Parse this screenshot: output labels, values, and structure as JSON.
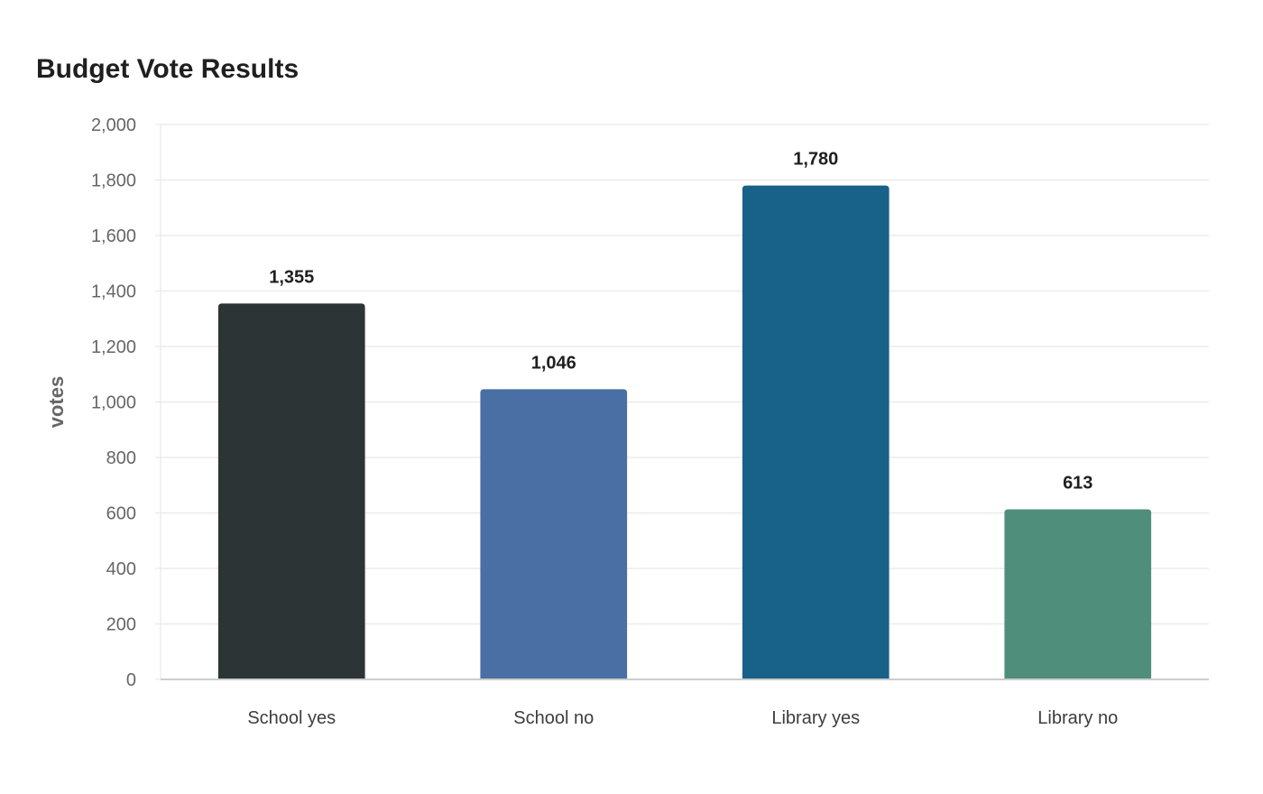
{
  "chart_data": {
    "type": "bar",
    "title": "Budget Vote Results",
    "xlabel": "",
    "ylabel": "votes",
    "ylim": [
      0,
      2000
    ],
    "yticks": [
      0,
      200,
      400,
      600,
      800,
      1000,
      1200,
      1400,
      1600,
      1800,
      2000
    ],
    "ytick_labels": [
      "0",
      "200",
      "400",
      "600",
      "800",
      "1,000",
      "1,200",
      "1,400",
      "1,600",
      "1,800",
      "2,000"
    ],
    "grid": true,
    "categories": [
      "School yes",
      "School no",
      "Library yes",
      "Library no"
    ],
    "values": [
      1355,
      1046,
      1780,
      613
    ],
    "value_labels": [
      "1,355",
      "1,046",
      "1,780",
      "613"
    ],
    "colors": [
      "#2d3436",
      "#4a6fa5",
      "#186188",
      "#4f8e7b"
    ]
  }
}
